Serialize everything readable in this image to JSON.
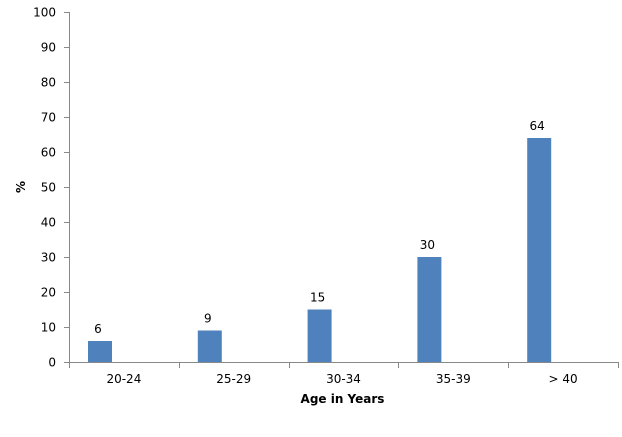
{
  "chart_data": {
    "type": "bar",
    "categories": [
      "20-24",
      "25-29",
      "30-34",
      "35-39",
      "> 40"
    ],
    "values": [
      6,
      9,
      15,
      30,
      64
    ],
    "data_labels": [
      "6",
      "9",
      "15",
      "30",
      "64"
    ],
    "xlabel": "Age in Years",
    "ylabel": "%",
    "ylim": [
      0,
      100
    ],
    "y_ticks": [
      0,
      10,
      20,
      30,
      40,
      50,
      60,
      70,
      80,
      90,
      100
    ],
    "y_tick_labels": [
      "0",
      "10",
      "20",
      "30",
      "40",
      "50",
      "60",
      "70",
      "80",
      "90",
      "100"
    ],
    "grid": false,
    "legend": "none",
    "bar_color": "#4f81bd"
  }
}
